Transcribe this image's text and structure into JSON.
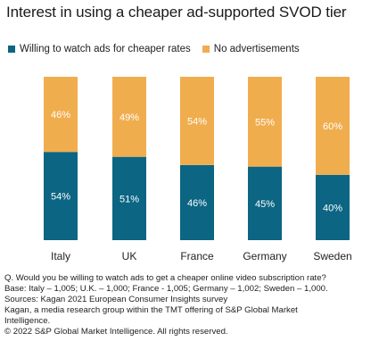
{
  "chart_data": {
    "type": "bar",
    "stacked": true,
    "title": "Interest in using a cheaper ad-supported SVOD tier",
    "categories": [
      "Italy",
      "UK",
      "France",
      "Germany",
      "Sweden"
    ],
    "series": [
      {
        "name": "Willing to watch ads for cheaper rates",
        "values": [
          54,
          51,
          46,
          45,
          40
        ],
        "color": "#0b6583"
      },
      {
        "name": "No advertisements",
        "values": [
          46,
          49,
          54,
          55,
          60
        ],
        "color": "#f0ad4e"
      }
    ],
    "value_suffix": "%",
    "ylim": [
      0,
      100
    ],
    "grid": false,
    "legend_position": "top-left"
  },
  "notes": [
    "Q. Would you be willing to watch ads to get a cheaper online video subscription rate?",
    "Base: Italy – 1,005; U.K. – 1,000; France - 1,005; Germany – 1,002; Sweden – 1,000.",
    "Sources: Kagan 2021 European Consumer Insights survey",
    "Kagan, a media research group within the TMT offering of S&P Global Market",
    "Intelligence.",
    "© 2022 S&P Global Market Intelligence.  All rights reserved."
  ]
}
